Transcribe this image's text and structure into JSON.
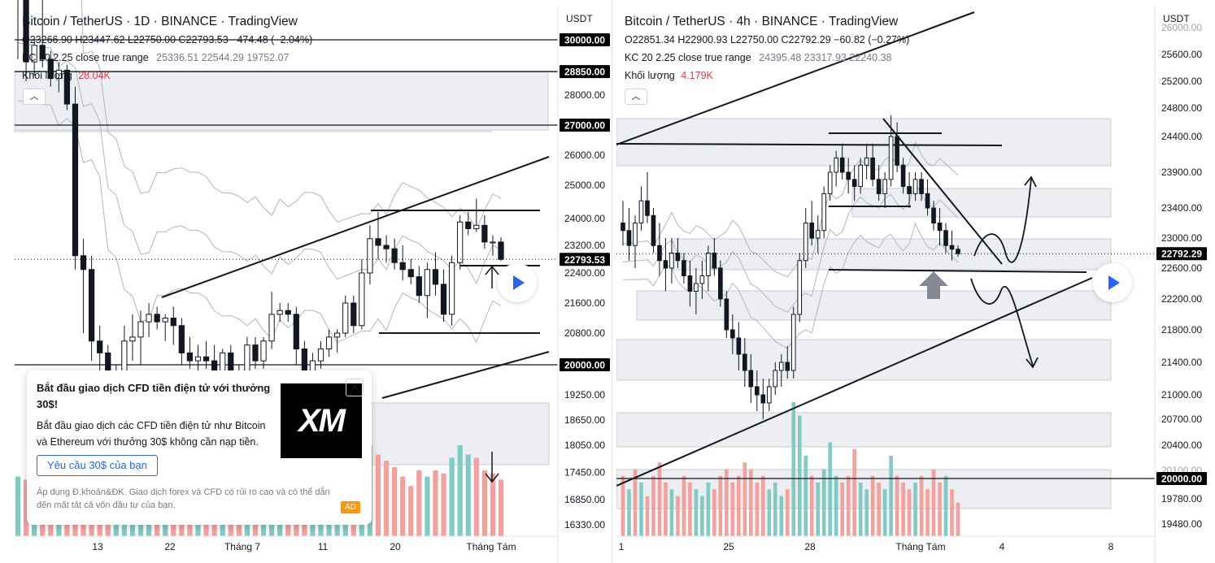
{
  "colors": {
    "up": "#26a69a",
    "down": "#ef5350",
    "vol_up": "#80cbc4",
    "vol_down": "#f4a19d",
    "zone": "#e6e8ee",
    "line": "#131722",
    "price_tag": "#000000",
    "accent": "#2962ff"
  },
  "left_chart": {
    "legend": {
      "title": "Bitcoin / TetherUS · 1D · BINANCE · TradingView",
      "ohlc": "O23266.90 H23447.62 L22750.00 C22793.53 −474.48 (−2.04%)",
      "kc_label": "KC 20 2.25 close true range",
      "kc_values": "25336.51 22544.29 19752.07",
      "volume_label": "Khối lượng",
      "volume_value": "28.04K"
    },
    "collapse_icon": "chevron-up-icon",
    "currency": "USDT",
    "y_ticks": [
      "28000.00",
      "26000.00",
      "25000.00",
      "24000.00",
      "23200.00",
      "22400.00",
      "21600.00",
      "20800.00",
      "19250.00",
      "18650.00",
      "18050.00",
      "17450.00",
      "16850.00",
      "16330.00"
    ],
    "price_tags": [
      "30000.00",
      "28850.00",
      "27000.00",
      "22793.53",
      "20000.00"
    ],
    "x_ticks": [
      "13",
      "22",
      "Tháng 7",
      "11",
      "20",
      "Tháng Tám"
    ]
  },
  "right_chart": {
    "legend": {
      "title": "Bitcoin / TetherUS · 4h · BINANCE · TradingView",
      "ohlc": "O22851.34 H22900.93 L22750.00 C22792.29 −60.82 (−0.27%)",
      "kc_label": "KC 20 2.25 close true range",
      "kc_values": "24395.48 23317.93 22240.38",
      "volume_label": "Khối lượng",
      "volume_value": "4.179K"
    },
    "collapse_icon": "chevron-up-icon",
    "currency": "USDT",
    "y_ticks": [
      "25600.00",
      "25200.00",
      "24800.00",
      "24400.00",
      "23900.00",
      "23400.00",
      "23000.00",
      "22600.00",
      "22200.00",
      "21800.00",
      "21400.00",
      "21000.00",
      "20700.00",
      "20400.00",
      "19780.00",
      "19480.00"
    ],
    "y_ticks_partial": [
      "26000.00",
      "20100.00"
    ],
    "price_tags": [
      "22792.29",
      "20000.00"
    ],
    "x_ticks": [
      "1",
      "25",
      "28",
      "Tháng Tám",
      "4",
      "8"
    ]
  },
  "ad": {
    "title": "Bắt đầu giao dịch CFD tiền điện tử với thưởng 30$!",
    "body": "Bắt đầu giao dịch các CFD tiền điện tử như Bitcoin và Ethereum với thưởng 30$ không cần nạp tiền.",
    "cta": "Yêu cầu 30$ của bạn",
    "note": "Áp dụng Đ.khoản&ĐK. Giao dịch forex và CFD có rủi ro cao và có thể dẫn đến mất tất cả vốn đầu tư của bạn.",
    "badge": "AD",
    "logo": "XM"
  },
  "chart_data": [
    {
      "type": "candlestick",
      "title": "Bitcoin / TetherUS · 1D · BINANCE · TradingView",
      "ylabel": "USDT",
      "x_tick_labels": [
        "13",
        "22",
        "Tháng 7",
        "11",
        "20",
        "Tháng Tám"
      ],
      "last_price": 22793.53,
      "horizontal_levels": [
        30000,
        28850,
        27000,
        20000
      ],
      "candles": [
        [
          30100,
          30900,
          29300,
          30600
        ],
        [
          30600,
          30900,
          28500,
          29200
        ],
        [
          29200,
          30000,
          28700,
          29800
        ],
        [
          29800,
          30400,
          29000,
          29300
        ],
        [
          29300,
          29600,
          28300,
          28600
        ],
        [
          28600,
          29200,
          28100,
          28900
        ],
        [
          28900,
          29100,
          27500,
          27700
        ],
        [
          27700,
          28300,
          22500,
          22900
        ],
        [
          22900,
          23400,
          20800,
          22500
        ],
        [
          22500,
          22900,
          20100,
          20600
        ],
        [
          20600,
          21000,
          18500,
          20300
        ],
        [
          20300,
          20500,
          17600,
          18900
        ],
        [
          18900,
          20000,
          17700,
          19100
        ],
        [
          19100,
          21000,
          19000,
          20600
        ],
        [
          20600,
          21300,
          20100,
          20700
        ],
        [
          20700,
          21400,
          20000,
          21100
        ],
        [
          21100,
          21600,
          20700,
          21300
        ],
        [
          21300,
          21500,
          20900,
          21100
        ],
        [
          21100,
          21300,
          20600,
          21200
        ],
        [
          21200,
          21500,
          20500,
          21000
        ],
        [
          21000,
          21200,
          20000,
          20300
        ],
        [
          20300,
          20700,
          19900,
          20100
        ],
        [
          20100,
          20500,
          19700,
          20200
        ],
        [
          20200,
          20600,
          19900,
          20100
        ],
        [
          20100,
          20500,
          19300,
          19800
        ],
        [
          19800,
          20400,
          19500,
          20300
        ],
        [
          20300,
          20500,
          19200,
          19700
        ],
        [
          19700,
          20000,
          19000,
          19300
        ],
        [
          19300,
          20700,
          19200,
          20500
        ],
        [
          20500,
          20700,
          19900,
          20100
        ],
        [
          20100,
          20700,
          19900,
          20600
        ],
        [
          20600,
          21900,
          20400,
          21300
        ],
        [
          21300,
          21600,
          21100,
          21400
        ],
        [
          21400,
          21600,
          21100,
          21300
        ],
        [
          21300,
          21500,
          20000,
          20400
        ],
        [
          20400,
          20600,
          19600,
          19800
        ],
        [
          19800,
          20300,
          19600,
          20100
        ],
        [
          20100,
          20600,
          19900,
          20400
        ],
        [
          20400,
          20900,
          20200,
          20700
        ],
        [
          20700,
          20900,
          20300,
          20800
        ],
        [
          20800,
          21800,
          20700,
          21600
        ],
        [
          21600,
          21800,
          20800,
          21000
        ],
        [
          21000,
          22800,
          20900,
          22400
        ],
        [
          22400,
          23800,
          22100,
          23400
        ],
        [
          23400,
          24200,
          22800,
          23200
        ],
        [
          23200,
          23500,
          22700,
          23100
        ],
        [
          23100,
          23400,
          22500,
          22700
        ],
        [
          22700,
          23200,
          22200,
          22500
        ],
        [
          22500,
          22800,
          22100,
          22300
        ],
        [
          22300,
          22600,
          21600,
          21800
        ],
        [
          21800,
          22700,
          21200,
          22500
        ],
        [
          22500,
          23000,
          21800,
          22100
        ],
        [
          22100,
          22500,
          21100,
          21300
        ],
        [
          21300,
          22900,
          21000,
          22700
        ],
        [
          22700,
          24100,
          22500,
          23900
        ],
        [
          23900,
          24200,
          23500,
          23700
        ],
        [
          23700,
          24600,
          23600,
          23800
        ],
        [
          23800,
          24100,
          23100,
          23300
        ],
        [
          23300,
          23500,
          22900,
          23300
        ],
        [
          23300,
          23447,
          22750,
          22794
        ]
      ],
      "volume": [
        [
          1.9,
          1
        ],
        [
          1.8,
          0
        ],
        [
          1.6,
          1
        ],
        [
          1.5,
          0
        ],
        [
          1.7,
          0
        ],
        [
          1.6,
          1
        ],
        [
          1.9,
          0
        ],
        [
          2.6,
          0
        ],
        [
          2.1,
          0
        ],
        [
          2.3,
          0
        ],
        [
          2.0,
          0
        ],
        [
          2.4,
          0
        ],
        [
          1.8,
          1
        ],
        [
          1.7,
          1
        ],
        [
          1.5,
          1
        ],
        [
          1.6,
          1
        ],
        [
          1.4,
          1
        ],
        [
          1.3,
          0
        ],
        [
          1.6,
          1
        ],
        [
          1.7,
          0
        ],
        [
          1.9,
          0
        ],
        [
          1.7,
          0
        ],
        [
          1.5,
          1
        ],
        [
          1.6,
          0
        ],
        [
          1.8,
          0
        ],
        [
          1.5,
          1
        ],
        [
          1.6,
          0
        ],
        [
          1.7,
          0
        ],
        [
          2.0,
          1
        ],
        [
          1.5,
          0
        ],
        [
          1.5,
          1
        ],
        [
          2.0,
          1
        ],
        [
          1.7,
          1
        ],
        [
          1.3,
          0
        ],
        [
          1.6,
          0
        ],
        [
          1.8,
          0
        ],
        [
          1.5,
          1
        ],
        [
          1.7,
          1
        ],
        [
          1.4,
          1
        ],
        [
          1.3,
          1
        ],
        [
          1.9,
          1
        ],
        [
          1.7,
          0
        ],
        [
          2.4,
          1
        ],
        [
          2.9,
          1
        ],
        [
          2.6,
          0
        ],
        [
          2.4,
          0
        ],
        [
          2.2,
          0
        ],
        [
          1.9,
          0
        ],
        [
          1.6,
          0
        ],
        [
          2.1,
          0
        ],
        [
          1.9,
          1
        ],
        [
          2.1,
          0
        ],
        [
          2.0,
          0
        ],
        [
          2.5,
          1
        ],
        [
          2.9,
          1
        ],
        [
          2.6,
          1
        ],
        [
          2.5,
          0
        ],
        [
          2.1,
          0
        ],
        [
          2.0,
          0
        ],
        [
          1.8,
          0
        ]
      ],
      "keltner": {
        "upper_first": 31000,
        "middle_first": 27500,
        "lower_first": 24000,
        "upper_last": 25336.51,
        "middle_last": 22544.29,
        "lower_last": 19752.07
      }
    },
    {
      "type": "candlestick",
      "title": "Bitcoin / TetherUS · 4h · BINANCE · TradingView",
      "ylabel": "USDT",
      "x_tick_labels": [
        "1",
        "25",
        "28",
        "Tháng Tám",
        "4",
        "8"
      ],
      "last_price": 22792.29,
      "horizontal_levels": [
        20000
      ],
      "candles": [
        [
          23200,
          23500,
          22900,
          23100
        ],
        [
          23100,
          23400,
          22700,
          22900
        ],
        [
          22900,
          23300,
          22600,
          23200
        ],
        [
          23200,
          23700,
          23100,
          23500
        ],
        [
          23500,
          23900,
          23200,
          23300
        ],
        [
          23300,
          23400,
          22800,
          22900
        ],
        [
          22900,
          23200,
          22500,
          22700
        ],
        [
          22700,
          23000,
          22300,
          22600
        ],
        [
          22600,
          23000,
          22400,
          22800
        ],
        [
          22800,
          23000,
          22600,
          22700
        ],
        [
          22700,
          22800,
          22400,
          22500
        ],
        [
          22500,
          22700,
          22100,
          22300
        ],
        [
          22300,
          22600,
          22000,
          22400
        ],
        [
          22400,
          22700,
          22200,
          22500
        ],
        [
          22500,
          22900,
          22300,
          22800
        ],
        [
          22800,
          23000,
          22500,
          22600
        ],
        [
          22600,
          22700,
          22100,
          22200
        ],
        [
          22200,
          22300,
          21700,
          21800
        ],
        [
          21800,
          22000,
          21500,
          21700
        ],
        [
          21700,
          21900,
          21300,
          21500
        ],
        [
          21500,
          21700,
          21100,
          21300
        ],
        [
          21300,
          21500,
          20900,
          21100
        ],
        [
          21100,
          21300,
          20800,
          21000
        ],
        [
          21000,
          21200,
          20700,
          20900
        ],
        [
          20900,
          21200,
          20800,
          21100
        ],
        [
          21100,
          21400,
          21000,
          21300
        ],
        [
          21300,
          21500,
          21100,
          21400
        ],
        [
          21400,
          21600,
          21200,
          21300
        ],
        [
          21300,
          22100,
          21200,
          22000
        ],
        [
          22000,
          22800,
          21900,
          22700
        ],
        [
          22700,
          23400,
          22600,
          23200
        ],
        [
          23200,
          23500,
          22900,
          23000
        ],
        [
          23000,
          23300,
          22800,
          23100
        ],
        [
          23100,
          23700,
          23000,
          23600
        ],
        [
          23600,
          24000,
          23500,
          23900
        ],
        [
          23900,
          24200,
          23700,
          24100
        ],
        [
          24100,
          24300,
          23800,
          23900
        ],
        [
          23900,
          24100,
          23600,
          23800
        ],
        [
          23800,
          24000,
          23500,
          23700
        ],
        [
          23700,
          24100,
          23600,
          24000
        ],
        [
          24000,
          24300,
          23800,
          24100
        ],
        [
          24100,
          24300,
          23700,
          23800
        ],
        [
          23800,
          24000,
          23500,
          23600
        ],
        [
          23600,
          23900,
          23400,
          23800
        ],
        [
          23800,
          24700,
          23700,
          24400
        ],
        [
          24400,
          24600,
          23900,
          24000
        ],
        [
          24000,
          24100,
          23600,
          23700
        ],
        [
          23700,
          23900,
          23400,
          23600
        ],
        [
          23600,
          23900,
          23500,
          23800
        ],
        [
          23800,
          23900,
          23500,
          23600
        ],
        [
          23600,
          23800,
          23300,
          23400
        ],
        [
          23400,
          23500,
          23100,
          23200
        ],
        [
          23200,
          23400,
          22900,
          23100
        ],
        [
          23100,
          23200,
          22800,
          22900
        ],
        [
          22900,
          23100,
          22700,
          22851
        ],
        [
          22851,
          22901,
          22750,
          22792
        ]
      ],
      "volume": [
        [
          0.9,
          0
        ],
        [
          0.7,
          1
        ],
        [
          1.0,
          0
        ],
        [
          0.8,
          1
        ],
        [
          0.6,
          0
        ],
        [
          0.9,
          0
        ],
        [
          1.1,
          0
        ],
        [
          0.8,
          0
        ],
        [
          0.7,
          1
        ],
        [
          0.6,
          0
        ],
        [
          0.9,
          0
        ],
        [
          0.8,
          0
        ],
        [
          0.7,
          1
        ],
        [
          0.6,
          1
        ],
        [
          0.8,
          1
        ],
        [
          0.7,
          0
        ],
        [
          0.9,
          0
        ],
        [
          1.0,
          0
        ],
        [
          0.8,
          0
        ],
        [
          0.9,
          0
        ],
        [
          1.1,
          0
        ],
        [
          1.0,
          0
        ],
        [
          0.8,
          0
        ],
        [
          0.9,
          0
        ],
        [
          0.7,
          1
        ],
        [
          0.8,
          1
        ],
        [
          0.6,
          1
        ],
        [
          0.7,
          0
        ],
        [
          2.0,
          1
        ],
        [
          1.8,
          1
        ],
        [
          1.2,
          1
        ],
        [
          0.9,
          0
        ],
        [
          0.8,
          1
        ],
        [
          1.0,
          1
        ],
        [
          1.4,
          1
        ],
        [
          0.9,
          1
        ],
        [
          0.8,
          0
        ],
        [
          0.9,
          0
        ],
        [
          1.3,
          0
        ],
        [
          0.8,
          1
        ],
        [
          0.7,
          1
        ],
        [
          0.9,
          0
        ],
        [
          0.8,
          0
        ],
        [
          0.7,
          1
        ],
        [
          1.2,
          1
        ],
        [
          0.9,
          0
        ],
        [
          0.8,
          0
        ],
        [
          0.7,
          0
        ],
        [
          0.8,
          1
        ],
        [
          0.9,
          0
        ],
        [
          0.7,
          0
        ],
        [
          1.0,
          0
        ],
        [
          0.8,
          0
        ],
        [
          0.9,
          1
        ],
        [
          0.7,
          0
        ],
        [
          0.5,
          0
        ]
      ],
      "keltner": {
        "upper_first": 23200,
        "middle_first": 22600,
        "lower_first": 22000,
        "upper_last": 24395.48,
        "middle_last": 23317.93,
        "lower_last": 22240.38
      }
    }
  ]
}
